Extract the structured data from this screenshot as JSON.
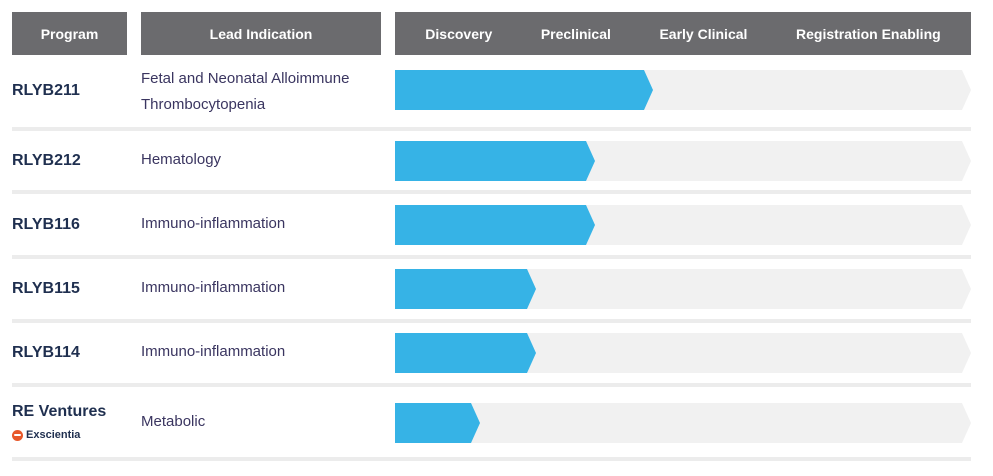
{
  "header": {
    "program": "Program",
    "indication": "Lead Indication",
    "phases": [
      "Discovery",
      "Preclinical",
      "Early Clinical",
      "Registration Enabling"
    ]
  },
  "colors": {
    "header_bg": "#6b6b6e",
    "progress": "#36b3e6",
    "track": "#f1f1f1",
    "separator": "#ececec",
    "program_text": "#1f2f4f",
    "indication_text": "#3a3560"
  },
  "rows": [
    {
      "program": "RLYB211",
      "indication": [
        "Fetal and Neonatal Alloimmune",
        "Thrombocytopenia"
      ],
      "progress": 0.448
    },
    {
      "program": "RLYB212",
      "indication": [
        "Hematology"
      ],
      "progress": 0.347
    },
    {
      "program": "RLYB116",
      "indication": [
        "Immuno-inflammation"
      ],
      "progress": 0.347
    },
    {
      "program": "RLYB115",
      "indication": [
        "Immuno-inflammation"
      ],
      "progress": 0.245
    },
    {
      "program": "RLYB114",
      "indication": [
        "Immuno-inflammation"
      ],
      "progress": 0.245
    },
    {
      "program": "RE Ventures",
      "partner": "Exscientia",
      "partner_icon": "exscientia-logo-icon",
      "indication": [
        "Metabolic"
      ],
      "progress": 0.147
    }
  ]
}
